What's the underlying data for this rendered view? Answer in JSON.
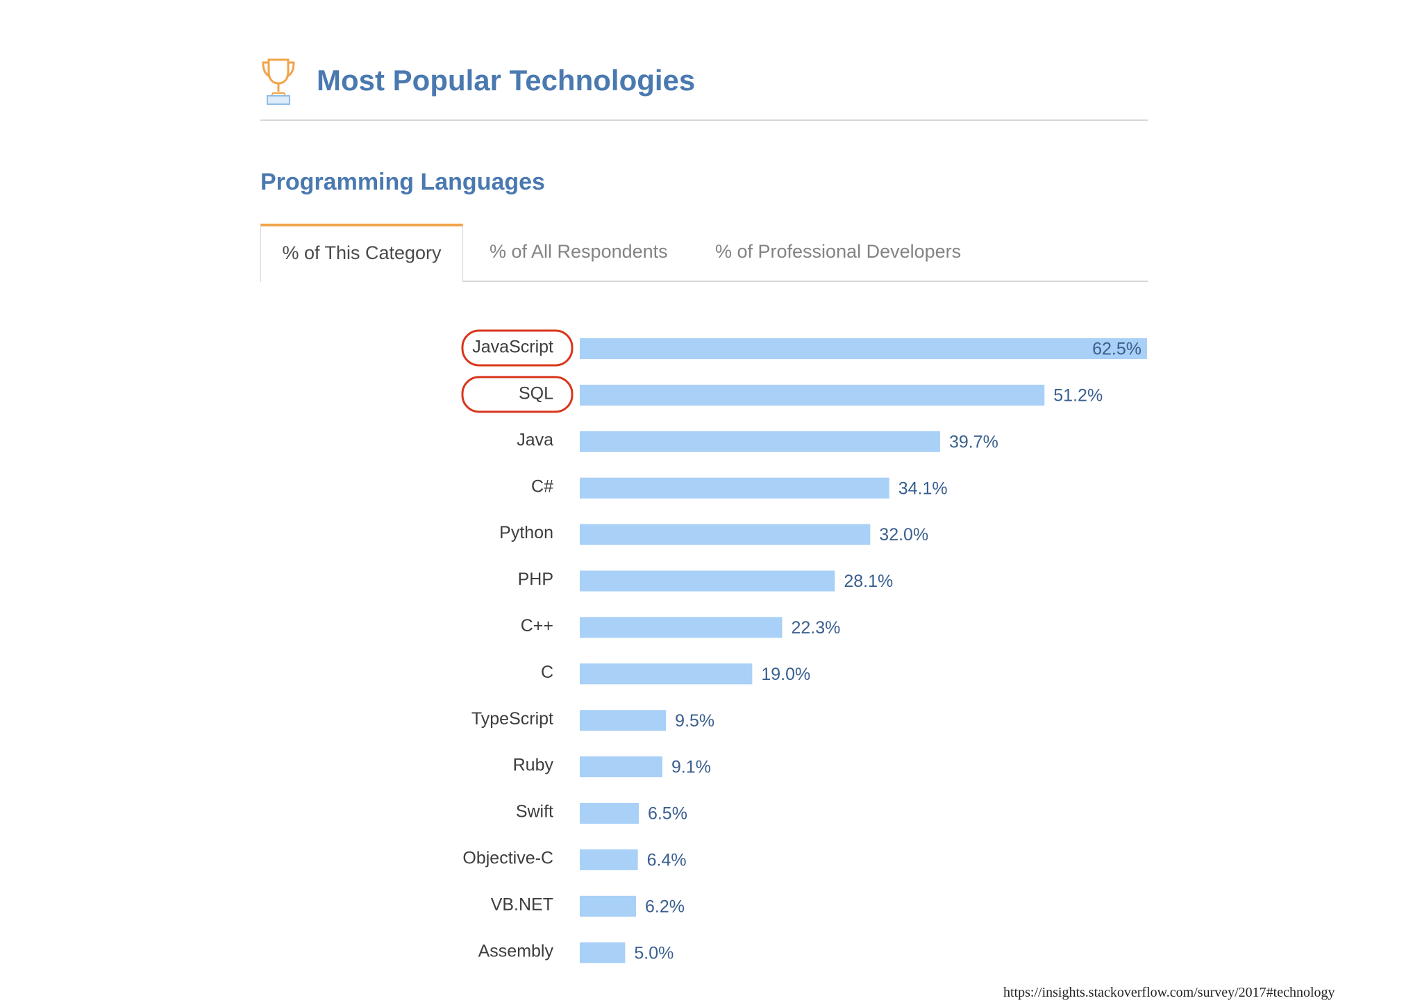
{
  "header": {
    "title": "Most Popular Technologies",
    "icon": "trophy-icon"
  },
  "section": {
    "title": "Programming Languages"
  },
  "tabs": [
    {
      "label": "% of This Category",
      "active": true
    },
    {
      "label": "% of All Respondents",
      "active": false
    },
    {
      "label": "% of Professional Developers",
      "active": false
    }
  ],
  "colors": {
    "bar": "#a9d0f7",
    "label_blue": "#3a5f8f",
    "title_blue": "#4a79b0",
    "highlight": "#d9361c",
    "tab_accent": "#f0a44a"
  },
  "chart_data": {
    "type": "bar",
    "orientation": "horizontal",
    "categories": [
      "JavaScript",
      "SQL",
      "Java",
      "C#",
      "Python",
      "PHP",
      "C++",
      "C",
      "TypeScript",
      "Ruby",
      "Swift",
      "Objective-C",
      "VB.NET",
      "Assembly"
    ],
    "values": [
      62.5,
      51.2,
      39.7,
      34.1,
      32.0,
      28.1,
      22.3,
      19.0,
      9.5,
      9.1,
      6.5,
      6.4,
      6.2,
      5.0
    ],
    "value_labels": [
      "62.5%",
      "51.2%",
      "39.7%",
      "34.1%",
      "32.0%",
      "28.1%",
      "22.3%",
      "19.0%",
      "9.5%",
      "9.1%",
      "6.5%",
      "6.4%",
      "6.2%",
      "5.0%"
    ],
    "highlighted": [
      "JavaScript",
      "SQL"
    ],
    "xlim": [
      0,
      62.5
    ],
    "grid": false
  },
  "footer": {
    "source": "https://insights.stackoverflow.com/survey/2017#technology"
  }
}
